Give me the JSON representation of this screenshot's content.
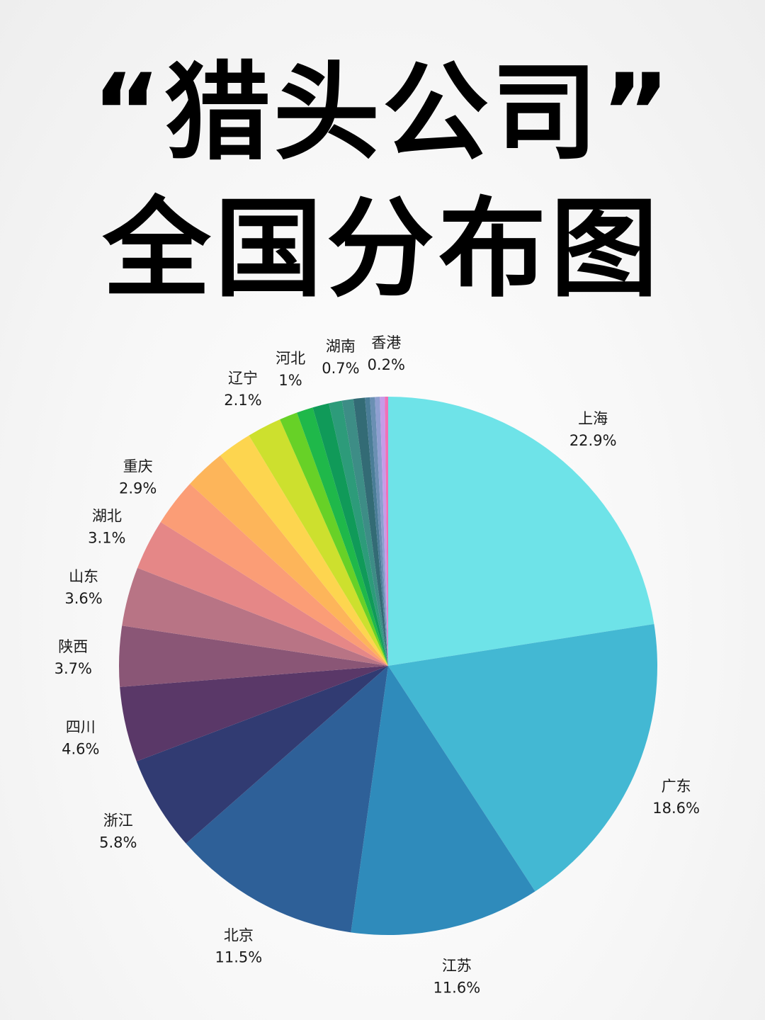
{
  "title": {
    "line1": "“猎头公司”",
    "line2": "全国分布图"
  },
  "chart_data": {
    "type": "pie",
    "title": "“猎头公司”全国分布图",
    "slices": [
      {
        "label": "上海",
        "value": 22.9,
        "display": "22.9%",
        "color": "#6ee3e8"
      },
      {
        "label": "广东",
        "value": 18.6,
        "display": "18.6%",
        "color": "#43b8d3"
      },
      {
        "label": "江苏",
        "value": 11.6,
        "display": "11.6%",
        "color": "#2f8bbb"
      },
      {
        "label": "北京",
        "value": 11.5,
        "display": "11.5%",
        "color": "#2e6098"
      },
      {
        "label": "浙江",
        "value": 5.8,
        "display": "5.8%",
        "color": "#313b72"
      },
      {
        "label": "四川",
        "value": 4.6,
        "display": "4.6%",
        "color": "#5a3868"
      },
      {
        "label": "陕西",
        "value": 3.7,
        "display": "3.7%",
        "color": "#8a5676"
      },
      {
        "label": "山东",
        "value": 3.6,
        "display": "3.6%",
        "color": "#b87485"
      },
      {
        "label": "湖北",
        "value": 3.1,
        "display": "3.1%",
        "color": "#e58787"
      },
      {
        "label": "重庆",
        "value": 2.9,
        "display": "2.9%",
        "color": "#fb9d76"
      },
      {
        "label": "",
        "value": 2.5,
        "display": "",
        "color": "#fdb55a"
      },
      {
        "label": "",
        "value": 2.1,
        "display": "",
        "color": "#fdd54f"
      },
      {
        "label": "辽宁",
        "value": 2.1,
        "display": "2.1%",
        "color": "#cde02e"
      },
      {
        "label": "",
        "value": 1.1,
        "display": "",
        "color": "#67d127"
      },
      {
        "label": "河北",
        "value": 1.0,
        "display": "1%",
        "color": "#1fb84a"
      },
      {
        "label": "",
        "value": 1.0,
        "display": "",
        "color": "#109a59"
      },
      {
        "label": "",
        "value": 0.8,
        "display": "",
        "color": "#2d9b7a"
      },
      {
        "label": "湖南",
        "value": 0.7,
        "display": "0.7%",
        "color": "#3d8d86"
      },
      {
        "label": "",
        "value": 0.7,
        "display": "",
        "color": "#336b75"
      },
      {
        "label": "",
        "value": 0.3,
        "display": "",
        "color": "#4a7d97"
      },
      {
        "label": "",
        "value": 0.3,
        "display": "",
        "color": "#6a8fb3"
      },
      {
        "label": "",
        "value": 0.3,
        "display": "",
        "color": "#8e9fd0"
      },
      {
        "label": "",
        "value": 0.3,
        "display": "",
        "color": "#c69be8"
      },
      {
        "label": "香港",
        "value": 0.2,
        "display": "0.2%",
        "color": "#f070b7"
      }
    ]
  }
}
